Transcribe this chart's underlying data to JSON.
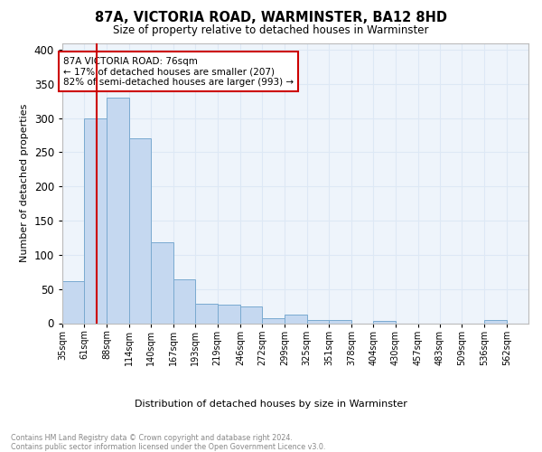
{
  "title": "87A, VICTORIA ROAD, WARMINSTER, BA12 8HD",
  "subtitle": "Size of property relative to detached houses in Warminster",
  "xlabel": "Distribution of detached houses by size in Warminster",
  "ylabel": "Number of detached properties",
  "bin_labels": [
    "35sqm",
    "61sqm",
    "88sqm",
    "114sqm",
    "140sqm",
    "167sqm",
    "193sqm",
    "219sqm",
    "246sqm",
    "272sqm",
    "299sqm",
    "325sqm",
    "351sqm",
    "378sqm",
    "404sqm",
    "430sqm",
    "457sqm",
    "483sqm",
    "509sqm",
    "536sqm",
    "562sqm"
  ],
  "bar_heights": [
    62,
    300,
    330,
    270,
    118,
    64,
    29,
    27,
    25,
    7,
    12,
    5,
    4,
    0,
    3,
    0,
    0,
    0,
    0,
    4,
    0
  ],
  "bar_color": "#c5d8f0",
  "bar_edge_color": "#7aaad0",
  "red_line_x": 76,
  "bin_edges": [
    35,
    61,
    88,
    114,
    140,
    167,
    193,
    219,
    246,
    272,
    299,
    325,
    351,
    378,
    404,
    430,
    457,
    483,
    509,
    536,
    562,
    588
  ],
  "annotation_text": "87A VICTORIA ROAD: 76sqm\n← 17% of detached houses are smaller (207)\n82% of semi-detached houses are larger (993) →",
  "annotation_box_color": "#ffffff",
  "annotation_box_edge": "#cc0000",
  "footnote": "Contains HM Land Registry data © Crown copyright and database right 2024.\nContains public sector information licensed under the Open Government Licence v3.0.",
  "ylim": [
    0,
    410
  ],
  "grid_color": "#dde8f5",
  "background_color": "#eef4fb"
}
